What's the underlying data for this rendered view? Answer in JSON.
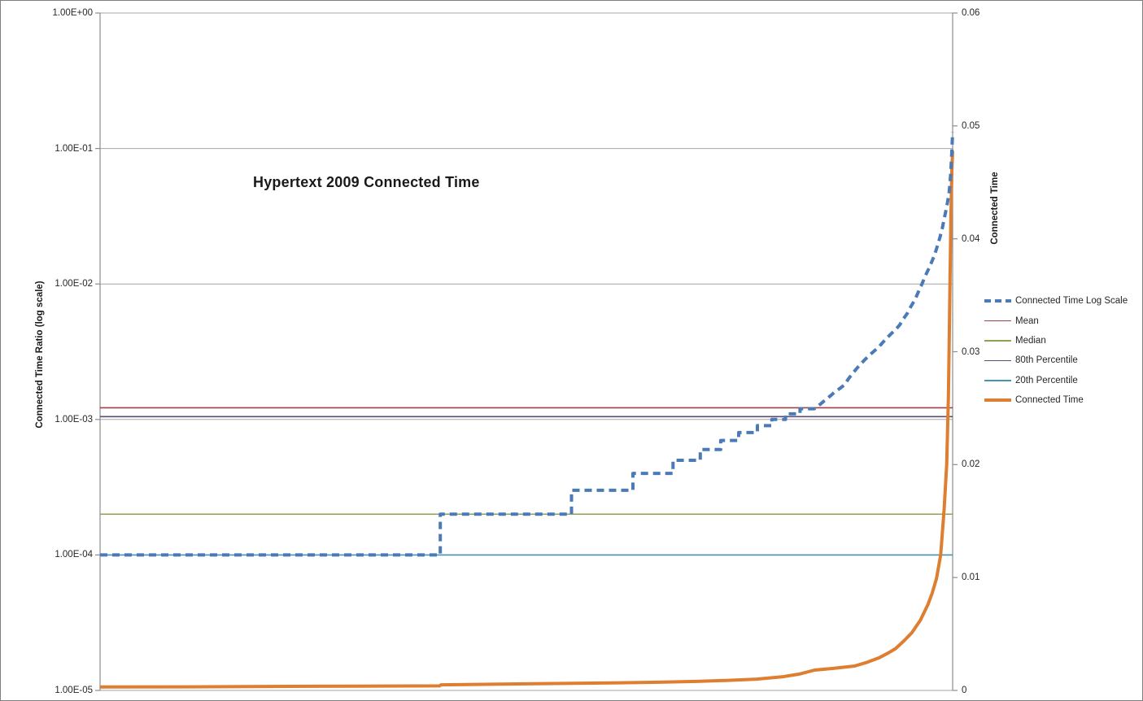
{
  "title": "Hypertext 2009 Connected Time",
  "colors": {
    "background": "#FFFFFF",
    "border": "#7F7F7F",
    "gridline": "#A6A6A6",
    "axis_line": "#8C8C8C",
    "text": "#262626",
    "series_log_blue": "#4A7AB8",
    "mean_red": "#9E4345",
    "median_green": "#8CA350",
    "p80_purple": "#5D4B75",
    "p20_teal": "#4795B5",
    "connected_orange": "#DE7E30"
  },
  "axes": {
    "left": {
      "title": "Connected Time Ratio (log scale)",
      "scale": "log",
      "ticks": [
        {
          "label": "1.00E+00",
          "value": 1
        },
        {
          "label": "1.00E-01",
          "value": 0.1
        },
        {
          "label": "1.00E-02",
          "value": 0.01
        },
        {
          "label": "1.00E-03",
          "value": 0.001
        },
        {
          "label": "1.00E-04",
          "value": 0.0001
        },
        {
          "label": "1.00E-05",
          "value": 1e-05
        }
      ]
    },
    "right": {
      "title": "Connected Time",
      "scale": "linear",
      "ticks": [
        {
          "label": "0.06",
          "value": 0.06
        },
        {
          "label": "0.05",
          "value": 0.05
        },
        {
          "label": "0.04",
          "value": 0.04
        },
        {
          "label": "0.03",
          "value": 0.03
        },
        {
          "label": "0.02",
          "value": 0.02
        },
        {
          "label": "0.01",
          "value": 0.01
        },
        {
          "label": "0",
          "value": 0
        }
      ]
    }
  },
  "legend": {
    "items": [
      {
        "label": "Connected Time Log Scale",
        "color": "#4A7AB8",
        "weight": 4,
        "dash": true
      },
      {
        "label": "Mean",
        "color": "#9E4345",
        "weight": 1.6,
        "dash": false
      },
      {
        "label": "Median",
        "color": "#8CA350",
        "weight": 1.6,
        "dash": false
      },
      {
        "label": "80th Percentile",
        "color": "#5D4B75",
        "weight": 1.6,
        "dash": false
      },
      {
        "label": "20th Percentile",
        "color": "#4795B5",
        "weight": 1.6,
        "dash": false
      },
      {
        "label": "Connected Time",
        "color": "#DE7E30",
        "weight": 4,
        "dash": false
      }
    ]
  },
  "chart_data": {
    "type": "line",
    "title": "Hypertext 2009 Connected Time",
    "x_axis": {
      "tick_labels_visible": false,
      "note": "x encoded as normalized 0-1 position across plot"
    },
    "left_y": {
      "label": "Connected Time Ratio (log scale)",
      "scale": "log",
      "range": [
        1e-05,
        1
      ]
    },
    "right_y": {
      "label": "Connected Time",
      "scale": "linear",
      "range": [
        0,
        0.06
      ]
    },
    "grid": "horizontal-only",
    "legend_position": "right",
    "series": [
      {
        "name": "Connected Time Log Scale",
        "axis": "left",
        "color": "#4A7AB8",
        "weight": 4,
        "dash": true,
        "points": [
          [
            0.0,
            0.0001
          ],
          [
            0.399,
            0.0001
          ],
          [
            0.399,
            0.0002
          ],
          [
            0.553,
            0.0002
          ],
          [
            0.553,
            0.0003
          ],
          [
            0.625,
            0.0003
          ],
          [
            0.625,
            0.0004
          ],
          [
            0.672,
            0.0004
          ],
          [
            0.672,
            0.0005
          ],
          [
            0.704,
            0.0005
          ],
          [
            0.704,
            0.0006
          ],
          [
            0.728,
            0.0006
          ],
          [
            0.728,
            0.0007
          ],
          [
            0.749,
            0.0007
          ],
          [
            0.749,
            0.0008
          ],
          [
            0.771,
            0.0008
          ],
          [
            0.771,
            0.0009
          ],
          [
            0.788,
            0.0009
          ],
          [
            0.788,
            0.001
          ],
          [
            0.804,
            0.001
          ],
          [
            0.804,
            0.0011
          ],
          [
            0.821,
            0.0011
          ],
          [
            0.821,
            0.0012
          ],
          [
            0.838,
            0.0012
          ],
          [
            0.845,
            0.0013
          ],
          [
            0.851,
            0.0014
          ],
          [
            0.857,
            0.0015
          ],
          [
            0.862,
            0.0016
          ],
          [
            0.868,
            0.0017
          ],
          [
            0.873,
            0.0018
          ],
          [
            0.878,
            0.002
          ],
          [
            0.883,
            0.0022
          ],
          [
            0.888,
            0.0024
          ],
          [
            0.893,
            0.0026
          ],
          [
            0.898,
            0.0028
          ],
          [
            0.903,
            0.003
          ],
          [
            0.908,
            0.0032
          ],
          [
            0.913,
            0.0034
          ],
          [
            0.918,
            0.0037
          ],
          [
            0.923,
            0.004
          ],
          [
            0.928,
            0.0043
          ],
          [
            0.933,
            0.0046
          ],
          [
            0.938,
            0.005
          ],
          [
            0.942,
            0.0055
          ],
          [
            0.947,
            0.0061
          ],
          [
            0.951,
            0.0068
          ],
          [
            0.956,
            0.0077
          ],
          [
            0.96,
            0.0088
          ],
          [
            0.964,
            0.01
          ],
          [
            0.968,
            0.0115
          ],
          [
            0.972,
            0.013
          ],
          [
            0.976,
            0.0148
          ],
          [
            0.979,
            0.0165
          ],
          [
            0.982,
            0.019
          ],
          [
            0.985,
            0.022
          ],
          [
            0.988,
            0.026
          ],
          [
            0.99,
            0.03
          ],
          [
            0.992,
            0.0345
          ],
          [
            0.994,
            0.04
          ],
          [
            0.996,
            0.048
          ],
          [
            0.997,
            0.057
          ],
          [
            0.998,
            0.07
          ],
          [
            0.999,
            0.095
          ],
          [
            1.0,
            0.132
          ]
        ]
      },
      {
        "name": "Connected Time",
        "axis": "right",
        "color": "#DE7E30",
        "weight": 4,
        "dash": false,
        "points": [
          [
            0.0,
            0.0003
          ],
          [
            0.1,
            0.00032
          ],
          [
            0.2,
            0.00035
          ],
          [
            0.3,
            0.00038
          ],
          [
            0.398,
            0.0004
          ],
          [
            0.4,
            0.0005
          ],
          [
            0.5,
            0.00058
          ],
          [
            0.6,
            0.00066
          ],
          [
            0.65,
            0.00072
          ],
          [
            0.7,
            0.0008
          ],
          [
            0.74,
            0.0009
          ],
          [
            0.77,
            0.001
          ],
          [
            0.8,
            0.0012
          ],
          [
            0.82,
            0.00145
          ],
          [
            0.838,
            0.0018
          ],
          [
            0.86,
            0.00195
          ],
          [
            0.885,
            0.00216
          ],
          [
            0.9,
            0.0025
          ],
          [
            0.914,
            0.0029
          ],
          [
            0.924,
            0.0033
          ],
          [
            0.933,
            0.0037
          ],
          [
            0.943,
            0.0044
          ],
          [
            0.952,
            0.0051
          ],
          [
            0.962,
            0.0062
          ],
          [
            0.971,
            0.0076
          ],
          [
            0.976,
            0.0086
          ],
          [
            0.981,
            0.0099
          ],
          [
            0.986,
            0.012
          ],
          [
            0.99,
            0.016
          ],
          [
            0.993,
            0.02
          ],
          [
            0.995,
            0.026
          ],
          [
            0.996,
            0.031
          ],
          [
            0.997,
            0.037
          ],
          [
            0.998,
            0.042
          ],
          [
            0.999,
            0.046
          ],
          [
            1.0,
            0.0478
          ]
        ]
      }
    ],
    "reference_lines": [
      {
        "name": "Mean",
        "axis": "left",
        "value": 0.00122,
        "color": "#9E4345",
        "weight": 1.6
      },
      {
        "name": "80th Percentile",
        "axis": "left",
        "value": 0.00105,
        "color": "#5D4B75",
        "weight": 1.6
      },
      {
        "name": "Median",
        "axis": "left",
        "value": 0.0002,
        "color": "#8CA350",
        "weight": 1.6
      },
      {
        "name": "20th Percentile",
        "axis": "left",
        "value": 0.0001,
        "color": "#4795B5",
        "weight": 1.6
      }
    ]
  }
}
